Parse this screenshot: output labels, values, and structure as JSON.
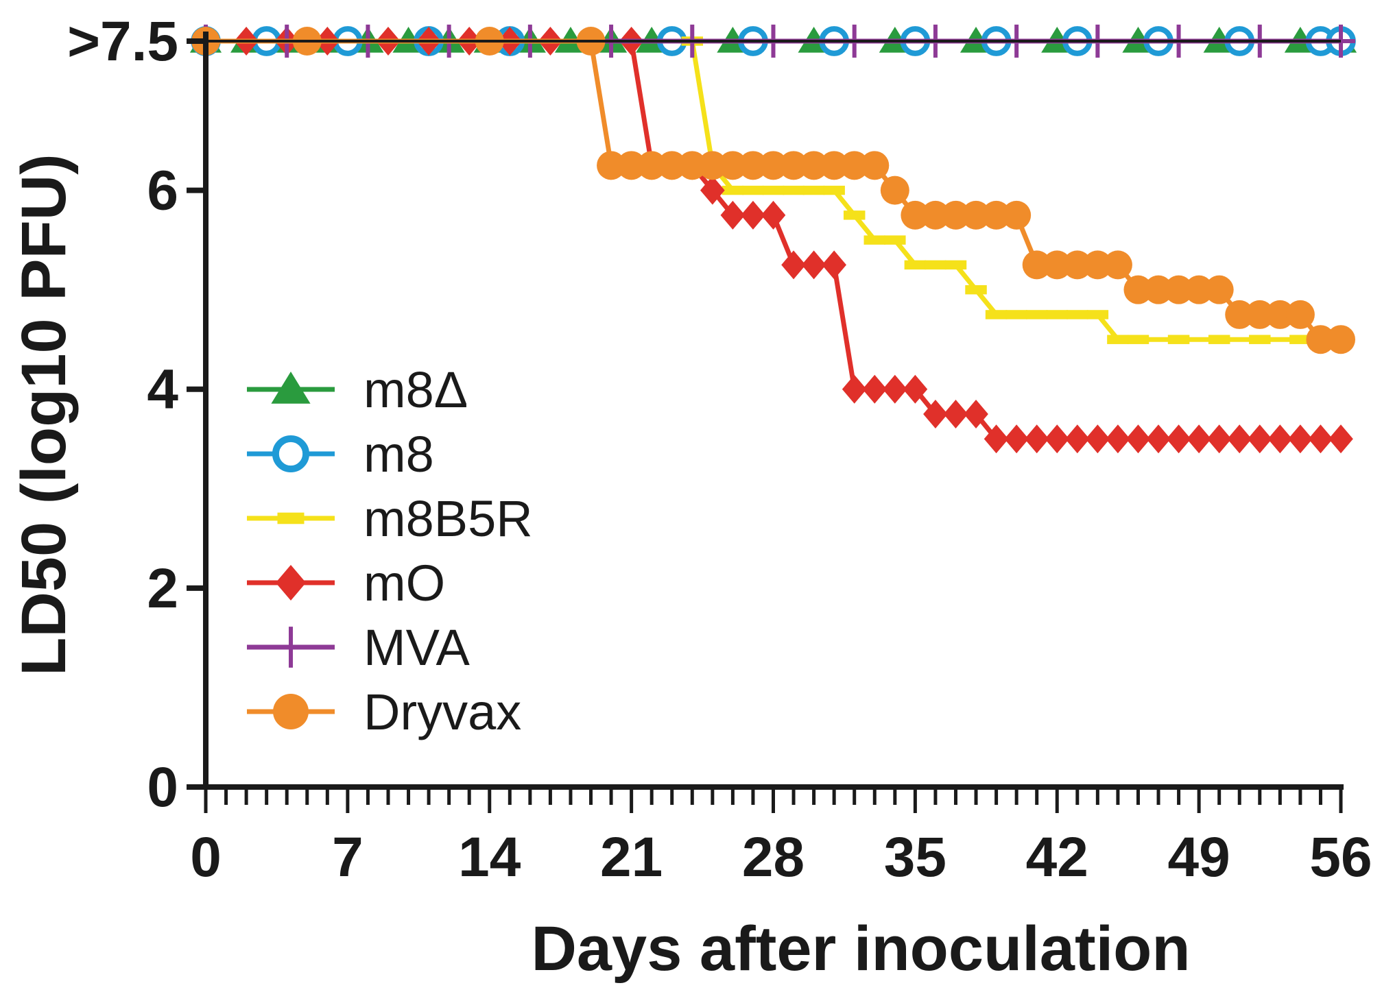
{
  "chart_data": {
    "type": "line",
    "xlabel": "Days after inoculation",
    "ylabel": "LD50 (log10 PFU)",
    "xlim": [
      0,
      56
    ],
    "ylim": [
      0,
      7.5
    ],
    "x_ticks": [
      0,
      7,
      14,
      21,
      28,
      35,
      42,
      49,
      56
    ],
    "x_tick_labels": [
      "0",
      "7",
      "14",
      "21",
      "28",
      "35",
      "42",
      "49",
      "56"
    ],
    "y_ticks": [
      0,
      2,
      4,
      6,
      7.5
    ],
    "y_tick_labels": [
      "0",
      "2",
      "4",
      "6",
      ">7.5"
    ],
    "grid": false,
    "legend_position": "left",
    "series": [
      {
        "name": "m8Δ",
        "color": "#2a9b3e",
        "marker": "triangle",
        "points": [
          [
            0,
            7.5
          ],
          [
            2,
            7.5
          ],
          [
            4,
            7.5
          ],
          [
            6,
            7.5
          ],
          [
            8,
            7.5
          ],
          [
            10,
            7.5
          ],
          [
            12,
            7.5
          ],
          [
            14,
            7.5
          ],
          [
            16,
            7.5
          ],
          [
            18,
            7.5
          ],
          [
            20,
            7.5
          ],
          [
            22,
            7.5
          ],
          [
            26,
            7.5
          ],
          [
            30,
            7.5
          ],
          [
            34,
            7.5
          ],
          [
            38,
            7.5
          ],
          [
            42,
            7.5
          ],
          [
            46,
            7.5
          ],
          [
            50,
            7.5
          ],
          [
            54,
            7.5
          ],
          [
            56,
            7.5
          ]
        ]
      },
      {
        "name": "m8",
        "color": "#1f9ad6",
        "marker": "circle-open",
        "points": [
          [
            0,
            7.5
          ],
          [
            3,
            7.5
          ],
          [
            7,
            7.5
          ],
          [
            11,
            7.5
          ],
          [
            15,
            7.5
          ],
          [
            23,
            7.5
          ],
          [
            27,
            7.5
          ],
          [
            31,
            7.5
          ],
          [
            35,
            7.5
          ],
          [
            39,
            7.5
          ],
          [
            43,
            7.5
          ],
          [
            47,
            7.5
          ],
          [
            51,
            7.5
          ],
          [
            55,
            7.5
          ],
          [
            56,
            7.5
          ]
        ]
      },
      {
        "name": "m8B5R",
        "color": "#f5e11a",
        "marker": "dash",
        "points": [
          [
            0,
            7.5
          ],
          [
            24,
            7.5
          ],
          [
            25,
            6.25
          ],
          [
            26,
            6.0
          ],
          [
            27,
            6.0
          ],
          [
            28,
            6.0
          ],
          [
            29,
            6.0
          ],
          [
            30,
            6.0
          ],
          [
            31,
            6.0
          ],
          [
            32,
            5.75
          ],
          [
            33,
            5.5
          ],
          [
            34,
            5.5
          ],
          [
            35,
            5.25
          ],
          [
            36,
            5.25
          ],
          [
            37,
            5.25
          ],
          [
            38,
            5.0
          ],
          [
            39,
            4.75
          ],
          [
            40,
            4.75
          ],
          [
            41,
            4.75
          ],
          [
            42,
            4.75
          ],
          [
            43,
            4.75
          ],
          [
            44,
            4.75
          ],
          [
            45,
            4.5
          ],
          [
            46,
            4.5
          ],
          [
            48,
            4.5
          ],
          [
            50,
            4.5
          ],
          [
            52,
            4.5
          ],
          [
            54,
            4.5
          ],
          [
            56,
            4.5
          ]
        ]
      },
      {
        "name": "mO",
        "color": "#e0302a",
        "marker": "diamond",
        "points": [
          [
            0,
            7.5
          ],
          [
            2,
            7.5
          ],
          [
            4,
            7.5
          ],
          [
            6,
            7.5
          ],
          [
            9,
            7.5
          ],
          [
            11,
            7.5
          ],
          [
            13,
            7.5
          ],
          [
            15,
            7.5
          ],
          [
            17,
            7.5
          ],
          [
            19,
            7.5
          ],
          [
            21,
            7.5
          ],
          [
            22,
            6.25
          ],
          [
            23,
            6.25
          ],
          [
            24,
            6.25
          ],
          [
            25,
            6.0
          ],
          [
            26,
            5.75
          ],
          [
            27,
            5.75
          ],
          [
            28,
            5.75
          ],
          [
            29,
            5.25
          ],
          [
            30,
            5.25
          ],
          [
            31,
            5.25
          ],
          [
            32,
            4.0
          ],
          [
            33,
            4.0
          ],
          [
            34,
            4.0
          ],
          [
            35,
            4.0
          ],
          [
            36,
            3.75
          ],
          [
            37,
            3.75
          ],
          [
            38,
            3.75
          ],
          [
            39,
            3.5
          ],
          [
            40,
            3.5
          ],
          [
            41,
            3.5
          ],
          [
            42,
            3.5
          ],
          [
            43,
            3.5
          ],
          [
            44,
            3.5
          ],
          [
            45,
            3.5
          ],
          [
            46,
            3.5
          ],
          [
            47,
            3.5
          ],
          [
            48,
            3.5
          ],
          [
            49,
            3.5
          ],
          [
            50,
            3.5
          ],
          [
            51,
            3.5
          ],
          [
            52,
            3.5
          ],
          [
            53,
            3.5
          ],
          [
            54,
            3.5
          ],
          [
            55,
            3.5
          ],
          [
            56,
            3.5
          ]
        ]
      },
      {
        "name": "MVA",
        "color": "#8e3a96",
        "marker": "plus",
        "points": [
          [
            0,
            7.5
          ],
          [
            4,
            7.5
          ],
          [
            8,
            7.5
          ],
          [
            12,
            7.5
          ],
          [
            16,
            7.5
          ],
          [
            20,
            7.5
          ],
          [
            24,
            7.5
          ],
          [
            28,
            7.5
          ],
          [
            32,
            7.5
          ],
          [
            36,
            7.5
          ],
          [
            40,
            7.5
          ],
          [
            44,
            7.5
          ],
          [
            48,
            7.5
          ],
          [
            52,
            7.5
          ],
          [
            56,
            7.5
          ]
        ]
      },
      {
        "name": "Dryvax",
        "color": "#f08c2a",
        "marker": "circle",
        "points": [
          [
            0,
            7.5
          ],
          [
            5,
            7.5
          ],
          [
            14,
            7.5
          ],
          [
            19,
            7.5
          ],
          [
            20,
            6.25
          ],
          [
            21,
            6.25
          ],
          [
            22,
            6.25
          ],
          [
            23,
            6.25
          ],
          [
            24,
            6.25
          ],
          [
            25,
            6.25
          ],
          [
            26,
            6.25
          ],
          [
            27,
            6.25
          ],
          [
            28,
            6.25
          ],
          [
            29,
            6.25
          ],
          [
            30,
            6.25
          ],
          [
            31,
            6.25
          ],
          [
            32,
            6.25
          ],
          [
            33,
            6.25
          ],
          [
            34,
            6.0
          ],
          [
            35,
            5.75
          ],
          [
            36,
            5.75
          ],
          [
            37,
            5.75
          ],
          [
            38,
            5.75
          ],
          [
            39,
            5.75
          ],
          [
            40,
            5.75
          ],
          [
            41,
            5.25
          ],
          [
            42,
            5.25
          ],
          [
            43,
            5.25
          ],
          [
            44,
            5.25
          ],
          [
            45,
            5.25
          ],
          [
            46,
            5.0
          ],
          [
            47,
            5.0
          ],
          [
            48,
            5.0
          ],
          [
            49,
            5.0
          ],
          [
            50,
            5.0
          ],
          [
            51,
            4.75
          ],
          [
            52,
            4.75
          ],
          [
            53,
            4.75
          ],
          [
            54,
            4.75
          ],
          [
            55,
            4.5
          ],
          [
            56,
            4.5
          ]
        ]
      }
    ]
  }
}
